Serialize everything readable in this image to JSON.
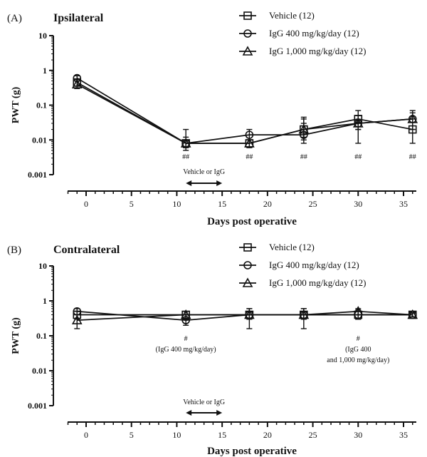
{
  "chart_data": [
    {
      "type": "line",
      "panel": "(A)",
      "title": "Ipsilateral",
      "xlabel": "Days post operative",
      "ylabel": "PWT (g)",
      "yscale": "log",
      "ylim": [
        0.001,
        10
      ],
      "xlim": [
        -3,
        37
      ],
      "x_ticks": [
        "0",
        "5",
        "10",
        "15",
        "20",
        "25",
        "30",
        "35"
      ],
      "y_ticks": [
        "0.001",
        "0.01",
        "0.1",
        "1",
        "10"
      ],
      "legend": "top-right",
      "treatment_label": "Vehicle or IgG",
      "treatment_range": [
        11,
        15
      ],
      "annotations": [
        {
          "x": 11,
          "text": "##"
        },
        {
          "x": 18,
          "text": "##"
        },
        {
          "x": 24,
          "text": "##"
        },
        {
          "x": 30,
          "text": "##"
        },
        {
          "x": 36,
          "text": "##"
        }
      ],
      "x": [
        -1,
        11,
        18,
        24,
        30,
        36
      ],
      "series": [
        {
          "name": "Vehicle (12)",
          "marker": "square",
          "values": [
            0.45,
            0.008,
            0.008,
            0.02,
            0.04,
            0.02
          ],
          "err_low": [
            0.35,
            0.005,
            0.006,
            0.01,
            0.008,
            0.008
          ],
          "err_high": [
            0.55,
            0.02,
            0.01,
            0.045,
            0.07,
            0.04
          ]
        },
        {
          "name": "IgG 400 mg/kg/day (12)",
          "marker": "circle",
          "values": [
            0.6,
            0.008,
            0.014,
            0.014,
            0.03,
            0.04
          ],
          "err_low": [
            0.5,
            0.006,
            0.01,
            0.008,
            0.02,
            0.02
          ],
          "err_high": [
            0.7,
            0.01,
            0.02,
            0.03,
            0.05,
            0.07
          ]
        },
        {
          "name": "IgG 1,000 mg/kg/day (12)",
          "marker": "triangle",
          "values": [
            0.4,
            0.008,
            0.008,
            0.02,
            0.03,
            0.04
          ],
          "err_low": [
            0.3,
            0.006,
            0.006,
            0.012,
            0.02,
            0.02
          ],
          "err_high": [
            0.5,
            0.012,
            0.01,
            0.04,
            0.05,
            0.06
          ]
        }
      ]
    },
    {
      "type": "line",
      "panel": "(B)",
      "title": "Contralateral",
      "xlabel": "Days post operative",
      "ylabel": "PWT (g)",
      "yscale": "log",
      "ylim": [
        0.001,
        10
      ],
      "xlim": [
        -3,
        37
      ],
      "x_ticks": [
        "0",
        "5",
        "10",
        "15",
        "20",
        "25",
        "30",
        "35"
      ],
      "y_ticks": [
        "0.001",
        "0.01",
        "0.1",
        "1",
        "10"
      ],
      "legend": "top-right",
      "treatment_label": "Vehicle or IgG",
      "treatment_range": [
        11,
        15
      ],
      "annotations": [
        {
          "x": 11,
          "lines": [
            "#",
            "(IgG 400 mg/kg/day)"
          ]
        },
        {
          "x": 30,
          "lines": [
            "#",
            "(IgG 400",
            "and 1,000 mg/kg/day)"
          ]
        }
      ],
      "x": [
        -1,
        11,
        18,
        24,
        30,
        36
      ],
      "series": [
        {
          "name": "Vehicle (12)",
          "marker": "square",
          "values": [
            0.4,
            0.4,
            0.4,
            0.4,
            0.4,
            0.4
          ],
          "err_low": [
            0.3,
            0.3,
            0.3,
            0.3,
            0.3,
            0.35
          ],
          "err_high": [
            0.5,
            0.5,
            0.5,
            0.5,
            0.5,
            0.45
          ]
        },
        {
          "name": "IgG 400 mg/kg/day (12)",
          "marker": "circle",
          "values": [
            0.5,
            0.28,
            0.4,
            0.4,
            0.4,
            0.4
          ],
          "err_low": [
            0.4,
            0.2,
            0.3,
            0.3,
            0.3,
            0.35
          ],
          "err_high": [
            0.6,
            0.4,
            0.6,
            0.6,
            0.55,
            0.45
          ]
        },
        {
          "name": "IgG 1,000 mg/kg/day (12)",
          "marker": "triangle",
          "values": [
            0.28,
            0.4,
            0.4,
            0.4,
            0.5,
            0.4
          ],
          "err_low": [
            0.16,
            0.3,
            0.16,
            0.16,
            0.3,
            0.35
          ],
          "err_high": [
            0.4,
            0.5,
            0.6,
            0.6,
            0.6,
            0.45
          ]
        }
      ]
    }
  ]
}
